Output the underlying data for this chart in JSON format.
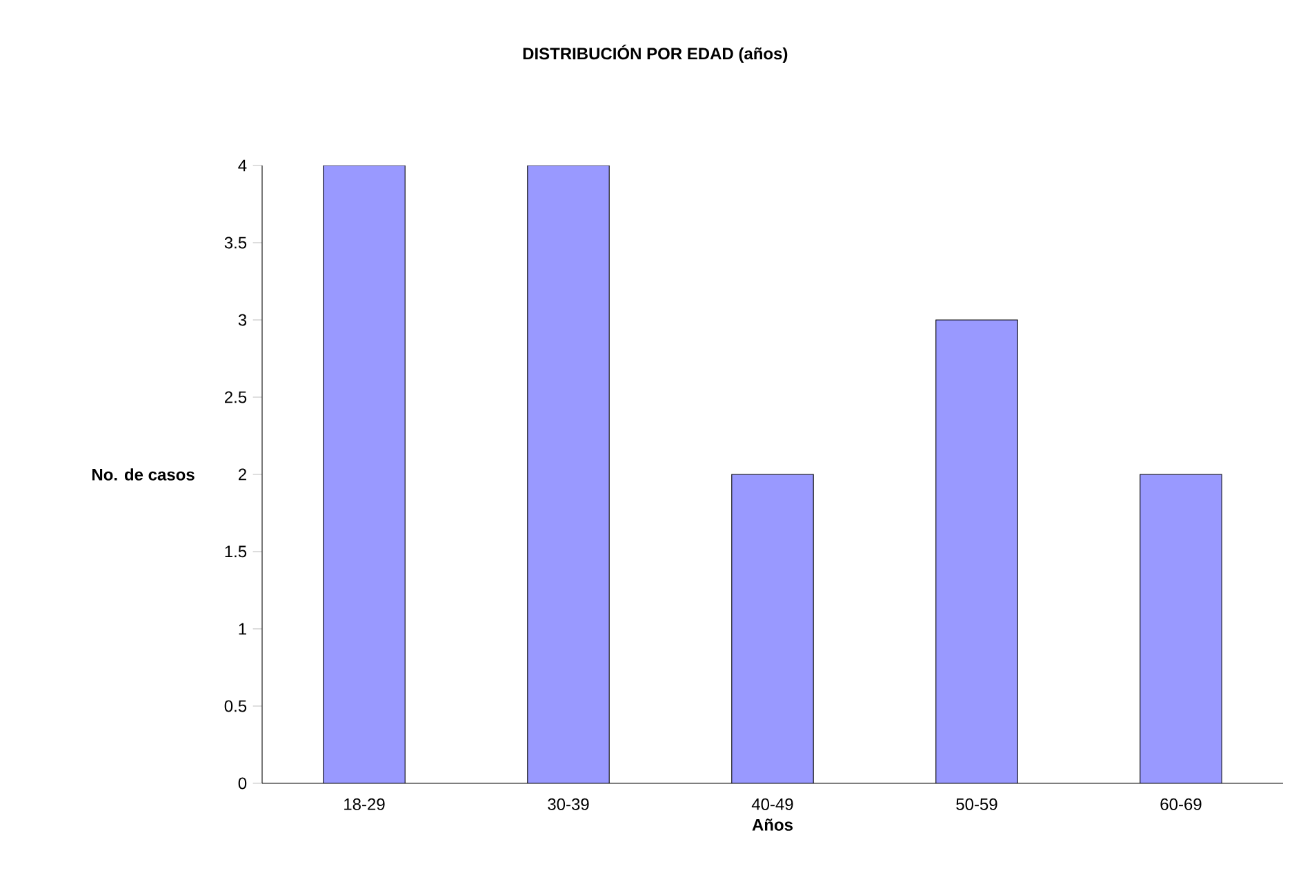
{
  "chart_data": {
    "type": "bar",
    "title": "DISTRIBUCIÓN POR EDAD (años)",
    "xlabel": "Años",
    "ylabel": "No. de casos",
    "categories": [
      "18-29",
      "30-39",
      "40-49",
      "50-59",
      "60-69"
    ],
    "values": [
      4,
      4,
      2,
      3,
      2
    ],
    "color": "#9999ff",
    "ylim": [
      0,
      4
    ],
    "yticks": [
      0,
      0.5,
      1,
      1.5,
      2,
      2.5,
      3,
      3.5,
      4
    ]
  }
}
